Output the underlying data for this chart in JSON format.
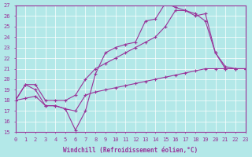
{
  "xlabel": "Windchill (Refroidissement éolien,°C)",
  "xlim": [
    0,
    23
  ],
  "ylim": [
    15,
    27
  ],
  "xticks": [
    0,
    1,
    2,
    3,
    4,
    5,
    6,
    7,
    8,
    9,
    10,
    11,
    12,
    13,
    14,
    15,
    16,
    17,
    18,
    19,
    20,
    21,
    22,
    23
  ],
  "yticks": [
    15,
    16,
    17,
    18,
    19,
    20,
    21,
    22,
    23,
    24,
    25,
    26,
    27
  ],
  "background_color": "#b3e8e8",
  "grid_color": "#ffffff",
  "line_color": "#993399",
  "line1_x": [
    0,
    1,
    2,
    3,
    4,
    5,
    6,
    7,
    8,
    9,
    10,
    11,
    12,
    13,
    14,
    15,
    16,
    17,
    18,
    19,
    20,
    21,
    22,
    23
  ],
  "line1_y": [
    18.0,
    19.5,
    19.0,
    17.5,
    17.5,
    17.2,
    15.2,
    17.0,
    20.5,
    22.5,
    23.0,
    23.3,
    23.5,
    25.5,
    25.7,
    27.2,
    26.8,
    26.5,
    26.0,
    26.2,
    22.5,
    21.2,
    21.0,
    21.0
  ],
  "line2_x": [
    0,
    1,
    2,
    3,
    4,
    5,
    6,
    7,
    8,
    9,
    10,
    11,
    12,
    13,
    14,
    15,
    16,
    17,
    18,
    19,
    20,
    21,
    22,
    23
  ],
  "line2_y": [
    18.0,
    19.5,
    19.5,
    18.0,
    18.0,
    18.0,
    18.5,
    20.0,
    21.0,
    21.5,
    22.0,
    22.5,
    23.0,
    23.5,
    24.0,
    25.0,
    26.5,
    26.5,
    26.2,
    25.5,
    22.5,
    21.0,
    21.0,
    21.0
  ],
  "line3_x": [
    0,
    1,
    2,
    3,
    4,
    5,
    6,
    7,
    8,
    9,
    10,
    11,
    12,
    13,
    14,
    15,
    16,
    17,
    18,
    19,
    20,
    21,
    22,
    23
  ],
  "line3_y": [
    18.0,
    18.2,
    18.4,
    17.5,
    17.5,
    17.2,
    17.0,
    18.5,
    18.8,
    19.0,
    19.2,
    19.4,
    19.6,
    19.8,
    20.0,
    20.2,
    20.4,
    20.6,
    20.8,
    21.0,
    21.0,
    21.0,
    21.0,
    21.0
  ]
}
